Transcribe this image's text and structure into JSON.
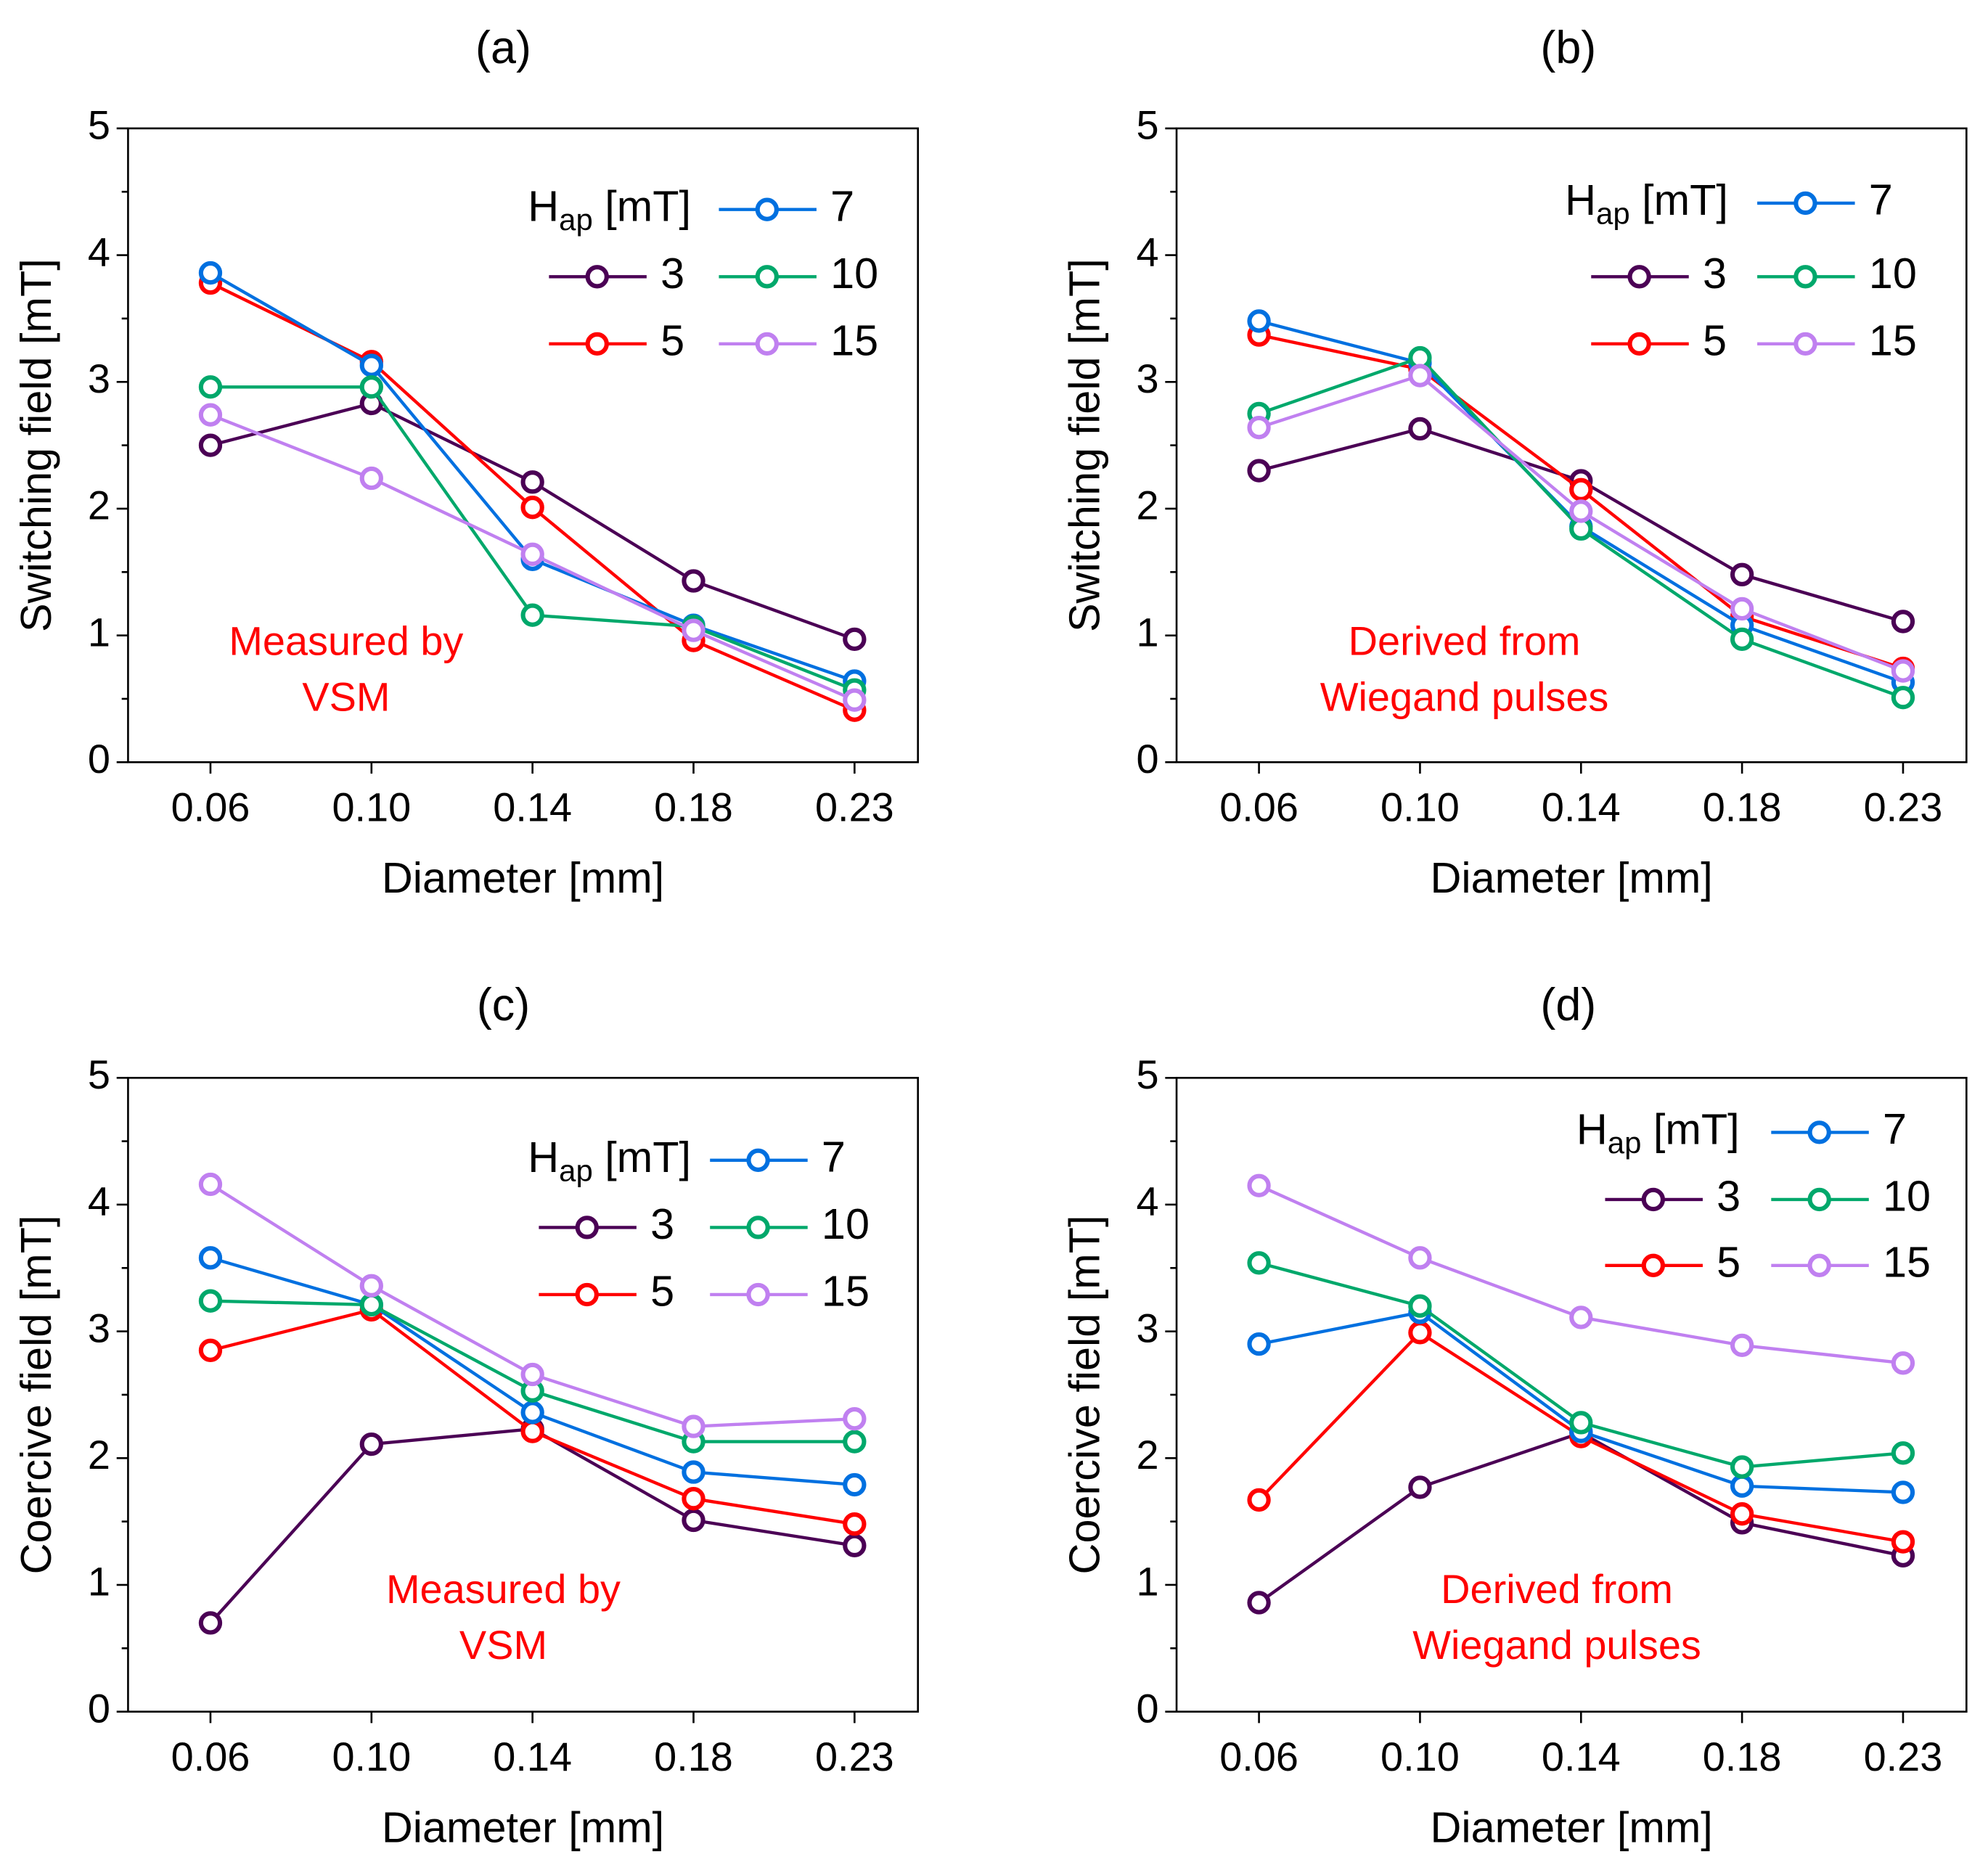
{
  "series_colors": {
    "3": "#4b0055",
    "5": "#ff0000",
    "7": "#0070e0",
    "10": "#00a86b",
    "15": "#c080f0"
  },
  "chart_data": [
    {
      "type": "line",
      "panel_label": "(a)",
      "xlabel": "Diameter [mm]",
      "ylabel": "Switching field [mT]",
      "categories": [
        "0.06",
        "0.10",
        "0.14",
        "0.18",
        "0.23"
      ],
      "ylim": [
        0,
        5
      ],
      "yticks": [
        "0",
        "1",
        "2",
        "3",
        "4",
        "5"
      ],
      "legend_title": "H",
      "legend_sub": "ap",
      "legend_unit": " [mT]",
      "annotation": [
        "Measured by",
        "VSM"
      ],
      "series": [
        {
          "name": "3",
          "values": [
            2.5,
            2.83,
            2.21,
            1.43,
            0.97
          ]
        },
        {
          "name": "5",
          "values": [
            3.78,
            3.16,
            2.01,
            0.96,
            0.41
          ]
        },
        {
          "name": "7",
          "values": [
            3.86,
            3.13,
            1.6,
            1.08,
            0.64
          ]
        },
        {
          "name": "10",
          "values": [
            2.96,
            2.96,
            1.16,
            1.07,
            0.57
          ]
        },
        {
          "name": "15",
          "values": [
            2.74,
            2.24,
            1.64,
            1.04,
            0.49
          ]
        }
      ]
    },
    {
      "type": "line",
      "panel_label": "(b)",
      "xlabel": "Diameter [mm]",
      "ylabel": "Switching field [mT]",
      "categories": [
        "0.06",
        "0.10",
        "0.14",
        "0.18",
        "0.23"
      ],
      "ylim": [
        0,
        5
      ],
      "yticks": [
        "0",
        "1",
        "2",
        "3",
        "4",
        "5"
      ],
      "legend_title": "H",
      "legend_sub": "ap",
      "legend_unit": " [mT]",
      "annotation": [
        "Derived from",
        "Wiegand pulses"
      ],
      "series": [
        {
          "name": "3",
          "values": [
            2.3,
            2.63,
            2.22,
            1.48,
            1.11
          ]
        },
        {
          "name": "5",
          "values": [
            3.37,
            3.1,
            2.15,
            1.15,
            0.74
          ]
        },
        {
          "name": "7",
          "values": [
            3.48,
            3.15,
            1.86,
            1.08,
            0.63
          ]
        },
        {
          "name": "10",
          "values": [
            2.75,
            3.19,
            1.84,
            0.97,
            0.51
          ]
        },
        {
          "name": "15",
          "values": [
            2.64,
            3.05,
            1.98,
            1.21,
            0.72
          ]
        }
      ]
    },
    {
      "type": "line",
      "panel_label": "(c)",
      "xlabel": "Diameter [mm]",
      "ylabel": "Coercive field [mT]",
      "categories": [
        "0.06",
        "0.10",
        "0.14",
        "0.18",
        "0.23"
      ],
      "ylim": [
        0,
        5
      ],
      "yticks": [
        "0",
        "1",
        "2",
        "3",
        "4",
        "5"
      ],
      "legend_title": "H",
      "legend_sub": "ap",
      "legend_unit": " [mT]",
      "annotation": [
        "Measured by",
        "VSM"
      ],
      "series": [
        {
          "name": "3",
          "values": [
            0.7,
            2.11,
            2.23,
            1.51,
            1.31
          ]
        },
        {
          "name": "5",
          "values": [
            2.85,
            3.17,
            2.21,
            1.68,
            1.48
          ]
        },
        {
          "name": "7",
          "values": [
            3.58,
            3.21,
            2.36,
            1.89,
            1.79
          ]
        },
        {
          "name": "10",
          "values": [
            3.24,
            3.21,
            2.53,
            2.13,
            2.13
          ]
        },
        {
          "name": "15",
          "values": [
            4.16,
            3.36,
            2.66,
            2.25,
            2.31
          ]
        }
      ]
    },
    {
      "type": "line",
      "panel_label": "(d)",
      "xlabel": "Diameter [mm]",
      "ylabel": "Coercive field [mT]",
      "categories": [
        "0.06",
        "0.10",
        "0.14",
        "0.18",
        "0.23"
      ],
      "ylim": [
        0,
        5
      ],
      "yticks": [
        "0",
        "1",
        "2",
        "3",
        "4",
        "5"
      ],
      "legend_title": "H",
      "legend_sub": "ap",
      "legend_unit": " [mT]",
      "annotation": [
        "Derived from",
        "Wiegand pulses"
      ],
      "series": [
        {
          "name": "3",
          "values": [
            0.86,
            1.77,
            2.2,
            1.49,
            1.23
          ]
        },
        {
          "name": "5",
          "values": [
            1.67,
            2.99,
            2.17,
            1.56,
            1.34
          ]
        },
        {
          "name": "7",
          "values": [
            2.9,
            3.15,
            2.21,
            1.78,
            1.73
          ]
        },
        {
          "name": "10",
          "values": [
            3.54,
            3.2,
            2.28,
            1.93,
            2.04
          ]
        },
        {
          "name": "15",
          "values": [
            4.15,
            3.58,
            3.11,
            2.89,
            2.75
          ]
        }
      ]
    }
  ]
}
